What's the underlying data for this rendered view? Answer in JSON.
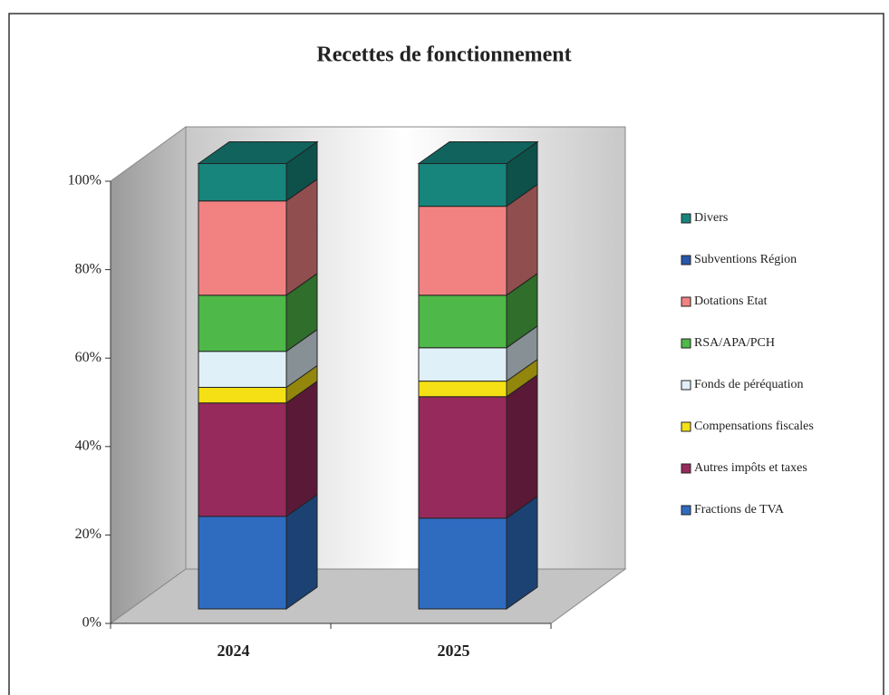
{
  "chart_data": {
    "type": "bar",
    "stacked": true,
    "three_d": true,
    "title": "Recettes de fonctionnement",
    "categories": [
      "2024",
      "2025"
    ],
    "series": [
      {
        "name": "Fractions de TVA",
        "color": "#2f6cc0",
        "values": [
          20.8,
          20.4
        ]
      },
      {
        "name": "Autres impôts et taxes",
        "color": "#962a5c",
        "values": [
          25.5,
          27.3
        ]
      },
      {
        "name": "Compensations fiscales",
        "color": "#f5e015",
        "values": [
          3.5,
          3.5
        ]
      },
      {
        "name": "Fonds de péréquation",
        "color": "#e0f0f8",
        "values": [
          8.1,
          7.5
        ]
      },
      {
        "name": "RSA/APA/PCH",
        "color": "#4eb848",
        "values": [
          12.6,
          11.8
        ]
      },
      {
        "name": "Dotations Etat",
        "color": "#f28282",
        "values": [
          21.2,
          20.0
        ]
      },
      {
        "name": "Subventions Région",
        "color": "#2a58a8",
        "values": [
          0,
          0
        ]
      },
      {
        "name": "Divers",
        "color": "#17857c",
        "values": [
          8.4,
          9.6
        ]
      }
    ],
    "ylim": [
      0,
      100
    ],
    "yticks": [
      {
        "value": 0,
        "label": "0%"
      },
      {
        "value": 20,
        "label": "20%"
      },
      {
        "value": 40,
        "label": "40%"
      },
      {
        "value": 60,
        "label": "60%"
      },
      {
        "value": 80,
        "label": "80%"
      },
      {
        "value": 100,
        "label": "100%"
      }
    ],
    "legend": "right"
  }
}
